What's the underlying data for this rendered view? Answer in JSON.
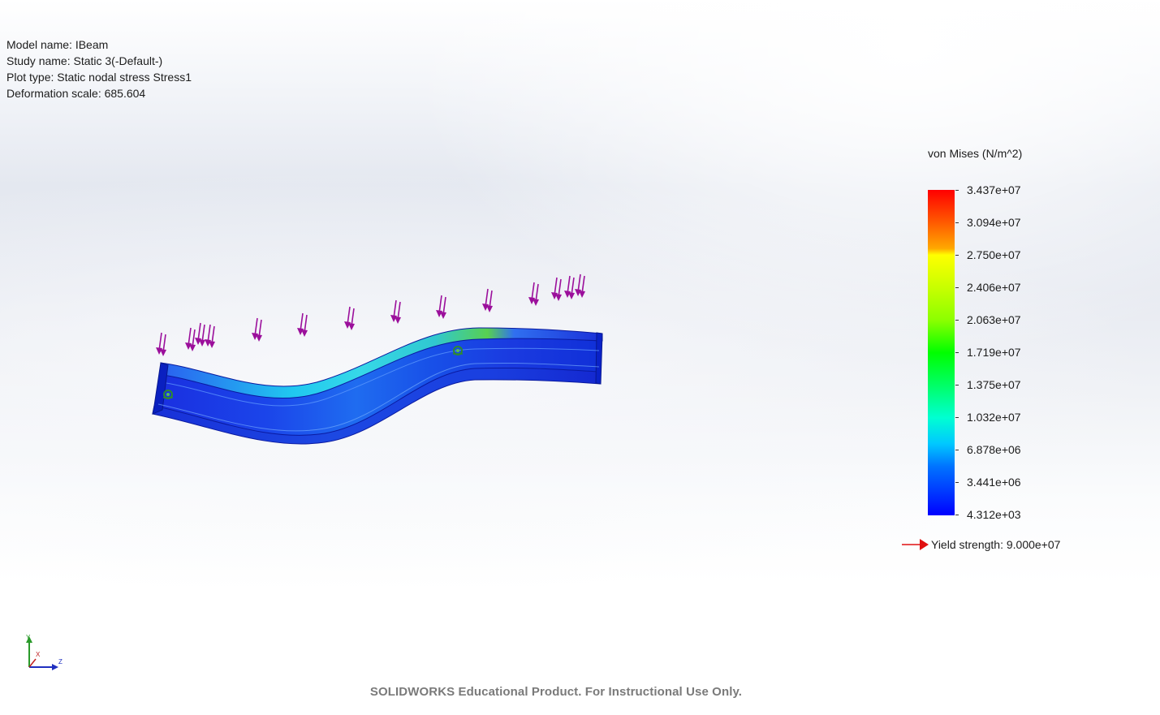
{
  "study_info": {
    "model_name": "Model name: IBeam",
    "study_name": "Study name: Static 3(-Default-)",
    "plot_type": "Plot type: Static nodal stress Stress1",
    "deformation_scale": "Deformation scale: 685.604"
  },
  "legend": {
    "title": "von Mises (N/m^2)",
    "ticks": [
      "3.437e+07",
      "3.094e+07",
      "2.750e+07",
      "2.406e+07",
      "2.063e+07",
      "1.719e+07",
      "1.375e+07",
      "1.032e+07",
      "6.878e+06",
      "3.441e+06",
      "4.312e+03"
    ],
    "yield_label": "Yield strength: 9.000e+07"
  },
  "triad": {
    "y": "Y",
    "x": "X",
    "z": "Z"
  },
  "footer": "SOLIDWORKS Educational Product. For Instructional Use Only.",
  "colors": {
    "load_arrow": "#9b0f9b",
    "fixture": "#2e8b2e",
    "yield_arrow": "#e01010",
    "beam_low_stress": "#0a1ad8"
  },
  "icons": {
    "load_arrow": "downward-arrow-icon",
    "fixture": "hinge-fixture-icon",
    "yield": "right-arrow-icon"
  }
}
